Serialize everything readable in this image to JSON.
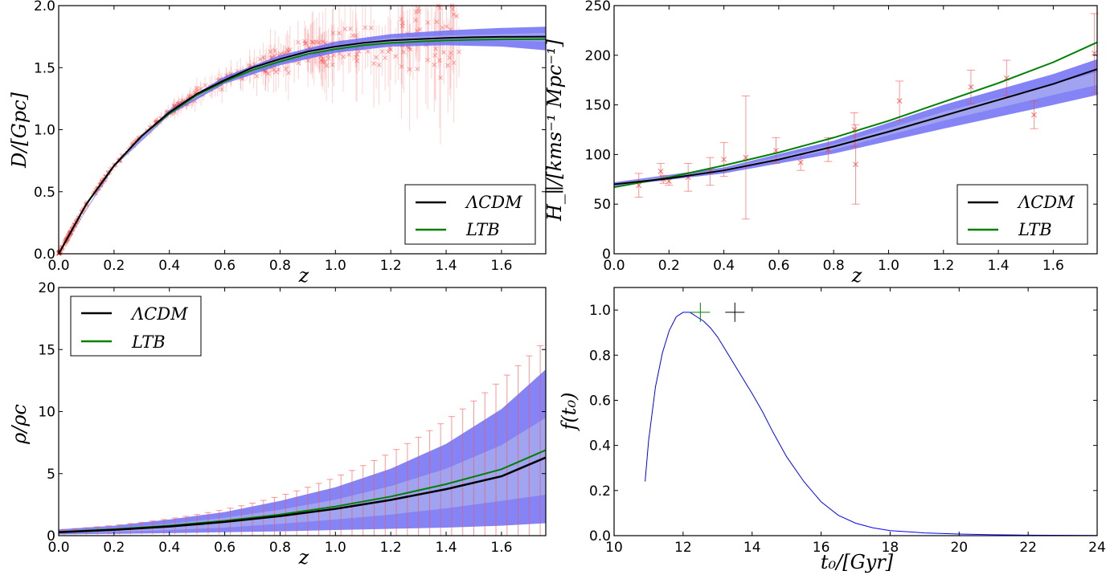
{
  "chart_data": [
    {
      "id": "distance",
      "type": "line",
      "xlabel": "z",
      "ylabel": "D/[Gpc]",
      "xlim": [
        0.0,
        1.76
      ],
      "ylim": [
        0.0,
        2.0
      ],
      "xticks": [
        "0.0",
        "0.2",
        "0.4",
        "0.6",
        "0.8",
        "1.0",
        "1.2",
        "1.4",
        "1.6"
      ],
      "yticks": [
        "0.0",
        "0.5",
        "1.0",
        "1.5",
        "2.0"
      ],
      "legend_position": "lower-right",
      "series": [
        {
          "name": "ΛCDM",
          "color": "#000000",
          "x": [
            0,
            0.1,
            0.2,
            0.3,
            0.4,
            0.5,
            0.6,
            0.7,
            0.8,
            0.9,
            1.0,
            1.1,
            1.2,
            1.3,
            1.4,
            1.5,
            1.6,
            1.76
          ],
          "values": [
            0,
            0.4,
            0.71,
            0.95,
            1.14,
            1.29,
            1.4,
            1.5,
            1.57,
            1.63,
            1.67,
            1.7,
            1.72,
            1.73,
            1.74,
            1.745,
            1.748,
            1.75
          ]
        },
        {
          "name": "LTB",
          "color": "#008000",
          "x": [
            0,
            0.1,
            0.2,
            0.3,
            0.4,
            0.5,
            0.6,
            0.7,
            0.8,
            0.9,
            1.0,
            1.1,
            1.2,
            1.3,
            1.4,
            1.5,
            1.6,
            1.76
          ],
          "values": [
            0,
            0.4,
            0.71,
            0.95,
            1.13,
            1.28,
            1.39,
            1.48,
            1.55,
            1.61,
            1.65,
            1.68,
            1.7,
            1.71,
            1.72,
            1.725,
            1.728,
            1.73
          ]
        }
      ],
      "bands": [
        {
          "name": "outer",
          "color": "#6e6ef5",
          "x": [
            0,
            0.2,
            0.4,
            0.6,
            0.8,
            1.0,
            1.2,
            1.4,
            1.6,
            1.76
          ],
          "lower": [
            0,
            0.7,
            1.12,
            1.37,
            1.52,
            1.62,
            1.67,
            1.68,
            1.67,
            1.64
          ],
          "upper": [
            0,
            0.72,
            1.16,
            1.43,
            1.6,
            1.71,
            1.77,
            1.8,
            1.82,
            1.83
          ]
        },
        {
          "name": "inner",
          "color": "#a4a8ef",
          "x": [
            0,
            0.2,
            0.4,
            0.6,
            0.8,
            1.0,
            1.2,
            1.4,
            1.6,
            1.76
          ],
          "lower": [
            0,
            0.705,
            1.13,
            1.39,
            1.55,
            1.65,
            1.7,
            1.72,
            1.72,
            1.71
          ],
          "upper": [
            0,
            0.715,
            1.15,
            1.41,
            1.58,
            1.68,
            1.74,
            1.76,
            1.77,
            1.78
          ]
        }
      ]
    },
    {
      "id": "hubble",
      "type": "line",
      "xlabel": "z",
      "ylabel": "H_∥/[kms⁻¹ Mpc⁻¹]",
      "xlim": [
        0.0,
        1.76
      ],
      "ylim": [
        0,
        250
      ],
      "xticks": [
        "0.0",
        "0.2",
        "0.4",
        "0.6",
        "0.8",
        "1.0",
        "1.2",
        "1.4",
        "1.6"
      ],
      "yticks": [
        "0",
        "50",
        "100",
        "150",
        "200",
        "250"
      ],
      "legend_position": "lower-right",
      "series": [
        {
          "name": "ΛCDM",
          "color": "#000000",
          "x": [
            0,
            0.2,
            0.4,
            0.6,
            0.8,
            1.0,
            1.2,
            1.4,
            1.6,
            1.76
          ],
          "values": [
            70,
            76,
            84,
            95,
            108,
            123,
            139,
            155,
            171,
            186
          ]
        },
        {
          "name": "LTB",
          "color": "#008000",
          "x": [
            0,
            0.2,
            0.4,
            0.6,
            0.8,
            1.0,
            1.2,
            1.4,
            1.6,
            1.76
          ],
          "values": [
            67,
            77,
            89,
            102,
            117,
            134,
            153,
            172,
            193,
            213
          ]
        }
      ],
      "bands": [
        {
          "name": "outer",
          "color": "#6e6ef5",
          "x": [
            0,
            0.4,
            0.8,
            1.2,
            1.6,
            1.76
          ],
          "lower": [
            68,
            81,
            101,
            126,
            150,
            160
          ],
          "upper": [
            72,
            87,
            114,
            150,
            181,
            196
          ]
        },
        {
          "name": "inner",
          "color": "#a4a8ef",
          "x": [
            0,
            0.4,
            0.8,
            1.2,
            1.6,
            1.76
          ],
          "lower": [
            69,
            83,
            105,
            134,
            160,
            170
          ],
          "upper": [
            71,
            85,
            110,
            143,
            171,
            183
          ]
        }
      ],
      "data_points": {
        "x": [
          0.09,
          0.17,
          0.18,
          0.2,
          0.27,
          0.35,
          0.4,
          0.48,
          0.59,
          0.68,
          0.78,
          0.875,
          0.88,
          1.04,
          1.3,
          1.43,
          1.53,
          1.75
        ],
        "y": [
          69,
          83,
          75,
          73,
          77,
          83,
          95,
          97,
          104,
          92,
          105,
          125,
          90,
          154,
          168,
          177,
          140,
          202
        ],
        "err": [
          12,
          8,
          4,
          4,
          14,
          14,
          17,
          62,
          13,
          8,
          12,
          17,
          40,
          20,
          17,
          18,
          14,
          40
        ]
      }
    },
    {
      "id": "density",
      "type": "line",
      "xlabel": "z",
      "ylabel": "ρ/ρc",
      "xlim": [
        0.0,
        1.76
      ],
      "ylim": [
        0,
        20
      ],
      "xticks": [
        "0.0",
        "0.2",
        "0.4",
        "0.6",
        "0.8",
        "1.0",
        "1.2",
        "1.4",
        "1.6"
      ],
      "yticks": [
        "0",
        "5",
        "10",
        "15",
        "20"
      ],
      "legend_position": "upper-left",
      "series": [
        {
          "name": "ΛCDM",
          "color": "#000000",
          "x": [
            0,
            0.2,
            0.4,
            0.6,
            0.8,
            1.0,
            1.2,
            1.4,
            1.6,
            1.76
          ],
          "values": [
            0.27,
            0.47,
            0.74,
            1.11,
            1.58,
            2.16,
            2.88,
            3.75,
            4.78,
            6.3
          ]
        },
        {
          "name": "LTB",
          "color": "#008000",
          "x": [
            0,
            0.2,
            0.4,
            0.6,
            0.8,
            1.0,
            1.2,
            1.4,
            1.6,
            1.76
          ],
          "values": [
            0.3,
            0.52,
            0.81,
            1.2,
            1.7,
            2.35,
            3.15,
            4.15,
            5.35,
            6.9
          ]
        }
      ],
      "bands": [
        {
          "name": "outer",
          "color": "#6e6ef5",
          "x": [
            0,
            0.2,
            0.4,
            0.6,
            0.8,
            1.0,
            1.2,
            1.4,
            1.6,
            1.76
          ],
          "lower": [
            0.1,
            0.15,
            0.2,
            0.28,
            0.35,
            0.45,
            0.55,
            0.65,
            0.8,
            1.0
          ],
          "upper": [
            0.5,
            0.8,
            1.3,
            1.9,
            2.8,
            3.9,
            5.4,
            7.4,
            10.2,
            13.4
          ]
        },
        {
          "name": "inner",
          "color": "#a4a8ef",
          "x": [
            0,
            0.2,
            0.4,
            0.6,
            0.8,
            1.0,
            1.2,
            1.4,
            1.6,
            1.76
          ],
          "lower": [
            0.2,
            0.3,
            0.45,
            0.65,
            0.95,
            1.3,
            1.7,
            2.2,
            2.8,
            3.3
          ],
          "upper": [
            0.35,
            0.6,
            0.95,
            1.45,
            2.1,
            2.9,
            4.0,
            5.4,
            7.3,
            9.5
          ]
        }
      ]
    },
    {
      "id": "age",
      "type": "line",
      "xlabel": "t₀/[Gyr]",
      "ylabel": "f(t₀)",
      "xlim": [
        10,
        24
      ],
      "ylim": [
        0.0,
        1.1
      ],
      "xticks": [
        "10",
        "12",
        "14",
        "16",
        "18",
        "20",
        "22",
        "24"
      ],
      "yticks": [
        "0.0",
        "0.2",
        "0.4",
        "0.6",
        "0.8",
        "1.0"
      ],
      "series": [
        {
          "name": "f(t0)",
          "color": "#0000ff",
          "x": [
            10.9,
            11.0,
            11.2,
            11.4,
            11.6,
            11.8,
            12.0,
            12.2,
            12.4,
            12.6,
            12.8,
            13.0,
            13.2,
            13.4,
            13.6,
            13.8,
            14.0,
            14.3,
            14.6,
            15.0,
            15.5,
            16.0,
            16.5,
            17.0,
            17.5,
            18.0,
            19.0,
            20.0,
            21.0,
            22.0,
            24.0
          ],
          "values": [
            0.24,
            0.42,
            0.66,
            0.81,
            0.91,
            0.97,
            0.99,
            0.99,
            0.97,
            0.95,
            0.92,
            0.88,
            0.83,
            0.78,
            0.73,
            0.68,
            0.63,
            0.55,
            0.46,
            0.35,
            0.24,
            0.15,
            0.09,
            0.055,
            0.035,
            0.022,
            0.012,
            0.007,
            0.004,
            0.002,
            0.001
          ]
        }
      ],
      "markers": [
        {
          "name": "LTB age",
          "x": 12.5,
          "y": 0.99,
          "color": "#008000"
        },
        {
          "name": "ΛCDM age",
          "x": 13.5,
          "y": 0.99,
          "color": "#000000"
        }
      ]
    }
  ],
  "legend": {
    "lcdm": "ΛCDM",
    "ltb": "LTB"
  }
}
